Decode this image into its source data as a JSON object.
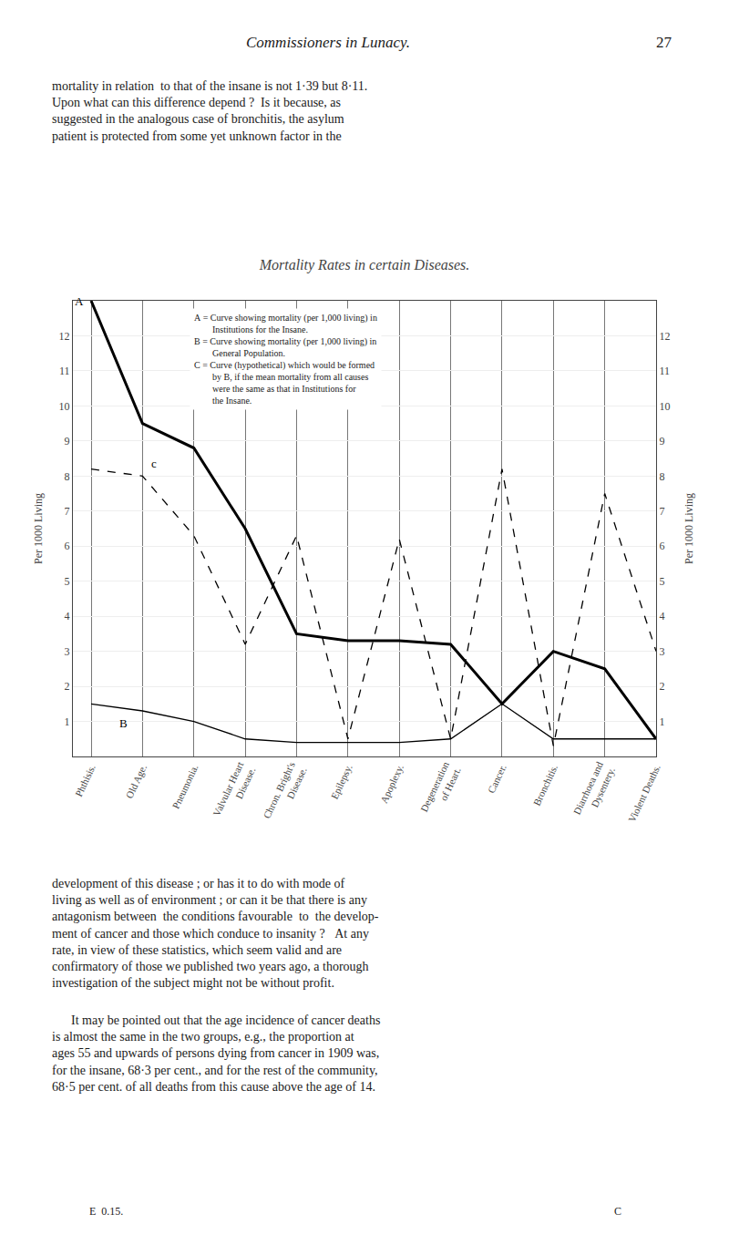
{
  "chart_data": {
    "type": "line",
    "title": "Mortality Rates in certain Diseases.",
    "ylabel": "Per 1000 Living",
    "y2label": "Per 1000 Living",
    "categories": [
      "Phthisis.",
      "Old Age.",
      "Pneumonia.",
      "Valvular Heart\nDisease.",
      "Chron. Bright's\nDisease.",
      "Epilepsy.",
      "Apoplexy.",
      "Degeneration\nof Heart.",
      "Cancer.",
      "Bronchitis.",
      "Diarrhoea and\nDysentery.",
      "Violent Deaths."
    ],
    "series": [
      {
        "name": "A",
        "color": "black",
        "line_style": "solid",
        "values": [
          13.0,
          9.5,
          8.8,
          6.5,
          3.5,
          3.3,
          3.3,
          3.2,
          1.5,
          3.0,
          2.5,
          0.5
        ]
      },
      {
        "name": "B",
        "color": "black",
        "line_style": "solid",
        "values": [
          1.5,
          1.3,
          1.0,
          0.5,
          0.4,
          0.4,
          0.4,
          0.5,
          1.5,
          0.5,
          0.5,
          0.5
        ]
      },
      {
        "name": "c",
        "color": "black",
        "line_style": "dashed",
        "values": [
          8.2,
          8.0,
          6.3,
          3.2,
          6.3,
          0.5,
          6.2,
          0.5,
          8.2,
          0.3,
          7.5,
          3.0
        ]
      }
    ],
    "ylim": [
      0,
      13
    ],
    "yticks": [
      1,
      2,
      3,
      4,
      5,
      6,
      7,
      8,
      9,
      10,
      11,
      12
    ],
    "y2lim": [
      0,
      13
    ],
    "y2ticks": [
      1,
      2,
      3,
      4,
      5,
      6,
      7,
      8,
      9,
      10,
      11,
      12
    ],
    "grid": true,
    "annotations": [
      "Commissioners in Lunacy.",
      "27",
      "mortality in relation  to that of the insane is not 1·39 but 8·11.\nUpon what can this difference depend ?  Is it because, as\nsuggested in the analogous case of bronchitis, the asylum\npatient is protected from some yet unknown factor in the",
      "A = Curve showing mortality (per 1,000 living) in\n        Institutions for the Insane.\nB = Curve showing mortality (per 1,000 living) in\n        General Population.\nC = Curve (hypothetical) which would be formed\n        by B, if the mean mortality from all causes\n        were the same as that in Institutions for\n        the Insane.",
      "development of this disease ; or has it to do with mode of\nliving as well as of environment ; or can it be that there is any\nantagonism between  the conditions favourable  to  the develop-\nment of cancer and those which conduce to insanity ?   At any\nrate, in view of these statistics, which seem valid and are\nconfirmatory of those we published two years ago, a thorough\ninvestigation of the subject might not be without profit.",
      "      It may be pointed out that the age incidence of cancer deaths\nis almost the same in the two groups, e.g., the proportion at\nages 55 and upwards of persons dying from cancer in 1909 was,\nfor the insane, 68·3 per cent., and for the rest of the community,\n68·5 per cent. of all deaths from this cause above the age of 14.",
      "E  0.15.",
      "C"
    ]
  }
}
